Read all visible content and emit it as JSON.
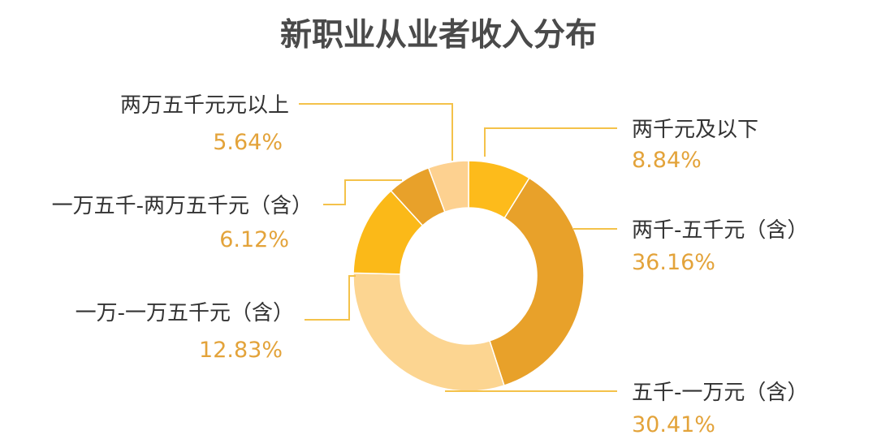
{
  "chart_data": {
    "type": "pie",
    "title": "新职业从业者收入分布",
    "categories": [
      "两千元及以下",
      "两千-五千元（含）",
      "五千-一万元（含）",
      "一万-一万五千元（含）",
      "一万五千-两万五千元（含）",
      "两万五千元元以上"
    ],
    "values": [
      8.84,
      36.16,
      30.41,
      12.83,
      6.12,
      5.64
    ],
    "value_labels": [
      "8.84%",
      "36.16%",
      "30.41%",
      "12.83%",
      "6.12%",
      "5.64%"
    ],
    "colors": [
      "#FDBB1B",
      "#E8A12A",
      "#FCD591",
      "#FBB918",
      "#E8A12A",
      "#FDD190"
    ],
    "label_color": "#E3A33A",
    "leader_color": "#F4C24A",
    "title_color": "#4A4A4A",
    "legend": "none"
  }
}
